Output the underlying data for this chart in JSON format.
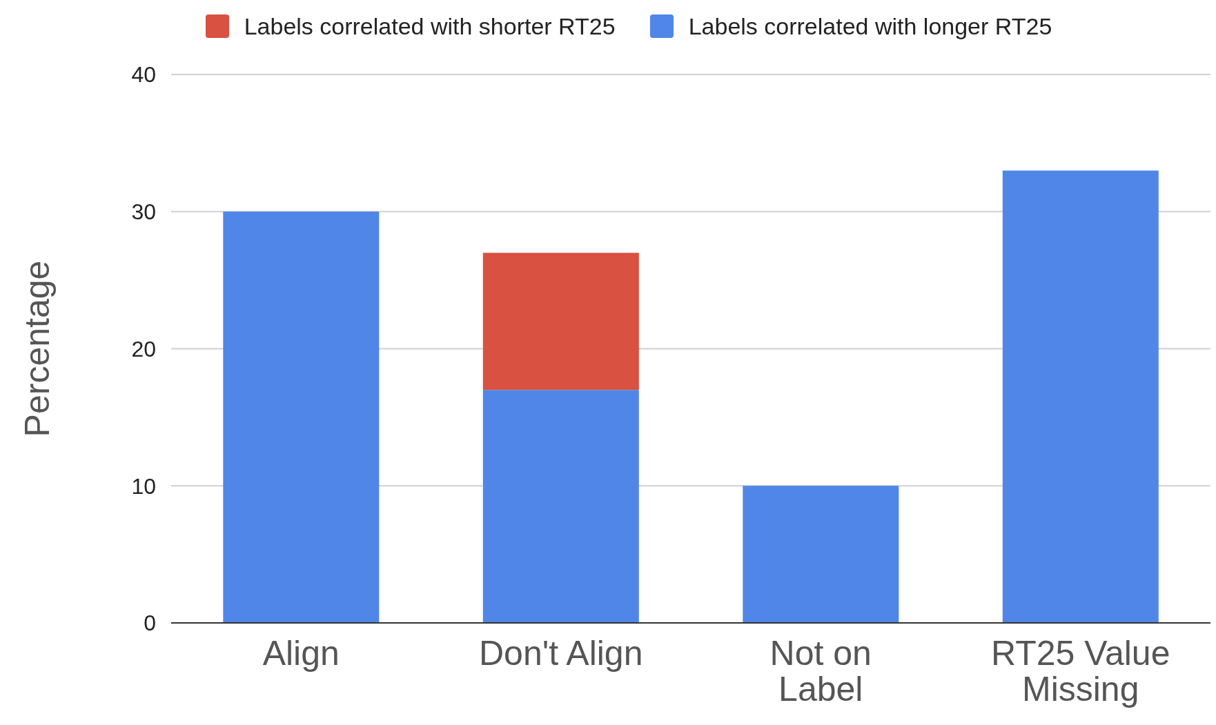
{
  "chart_data": {
    "type": "bar",
    "stacked": true,
    "ylabel": "Percentage",
    "categories": [
      "Align",
      "Don't Align",
      "Not on Label",
      "RT25 Value Missing"
    ],
    "series": [
      {
        "name": "Labels correlated with longer RT25",
        "color": "#4f86e8",
        "values": [
          30,
          17,
          10,
          33
        ]
      },
      {
        "name": "Labels correlated with shorter RT25",
        "color": "#d95140",
        "values": [
          null,
          10,
          null,
          null
        ]
      }
    ],
    "ylim": [
      0,
      40
    ],
    "yticks": [
      0,
      10,
      20,
      30,
      40
    ],
    "grid": "y",
    "legend": "top"
  }
}
